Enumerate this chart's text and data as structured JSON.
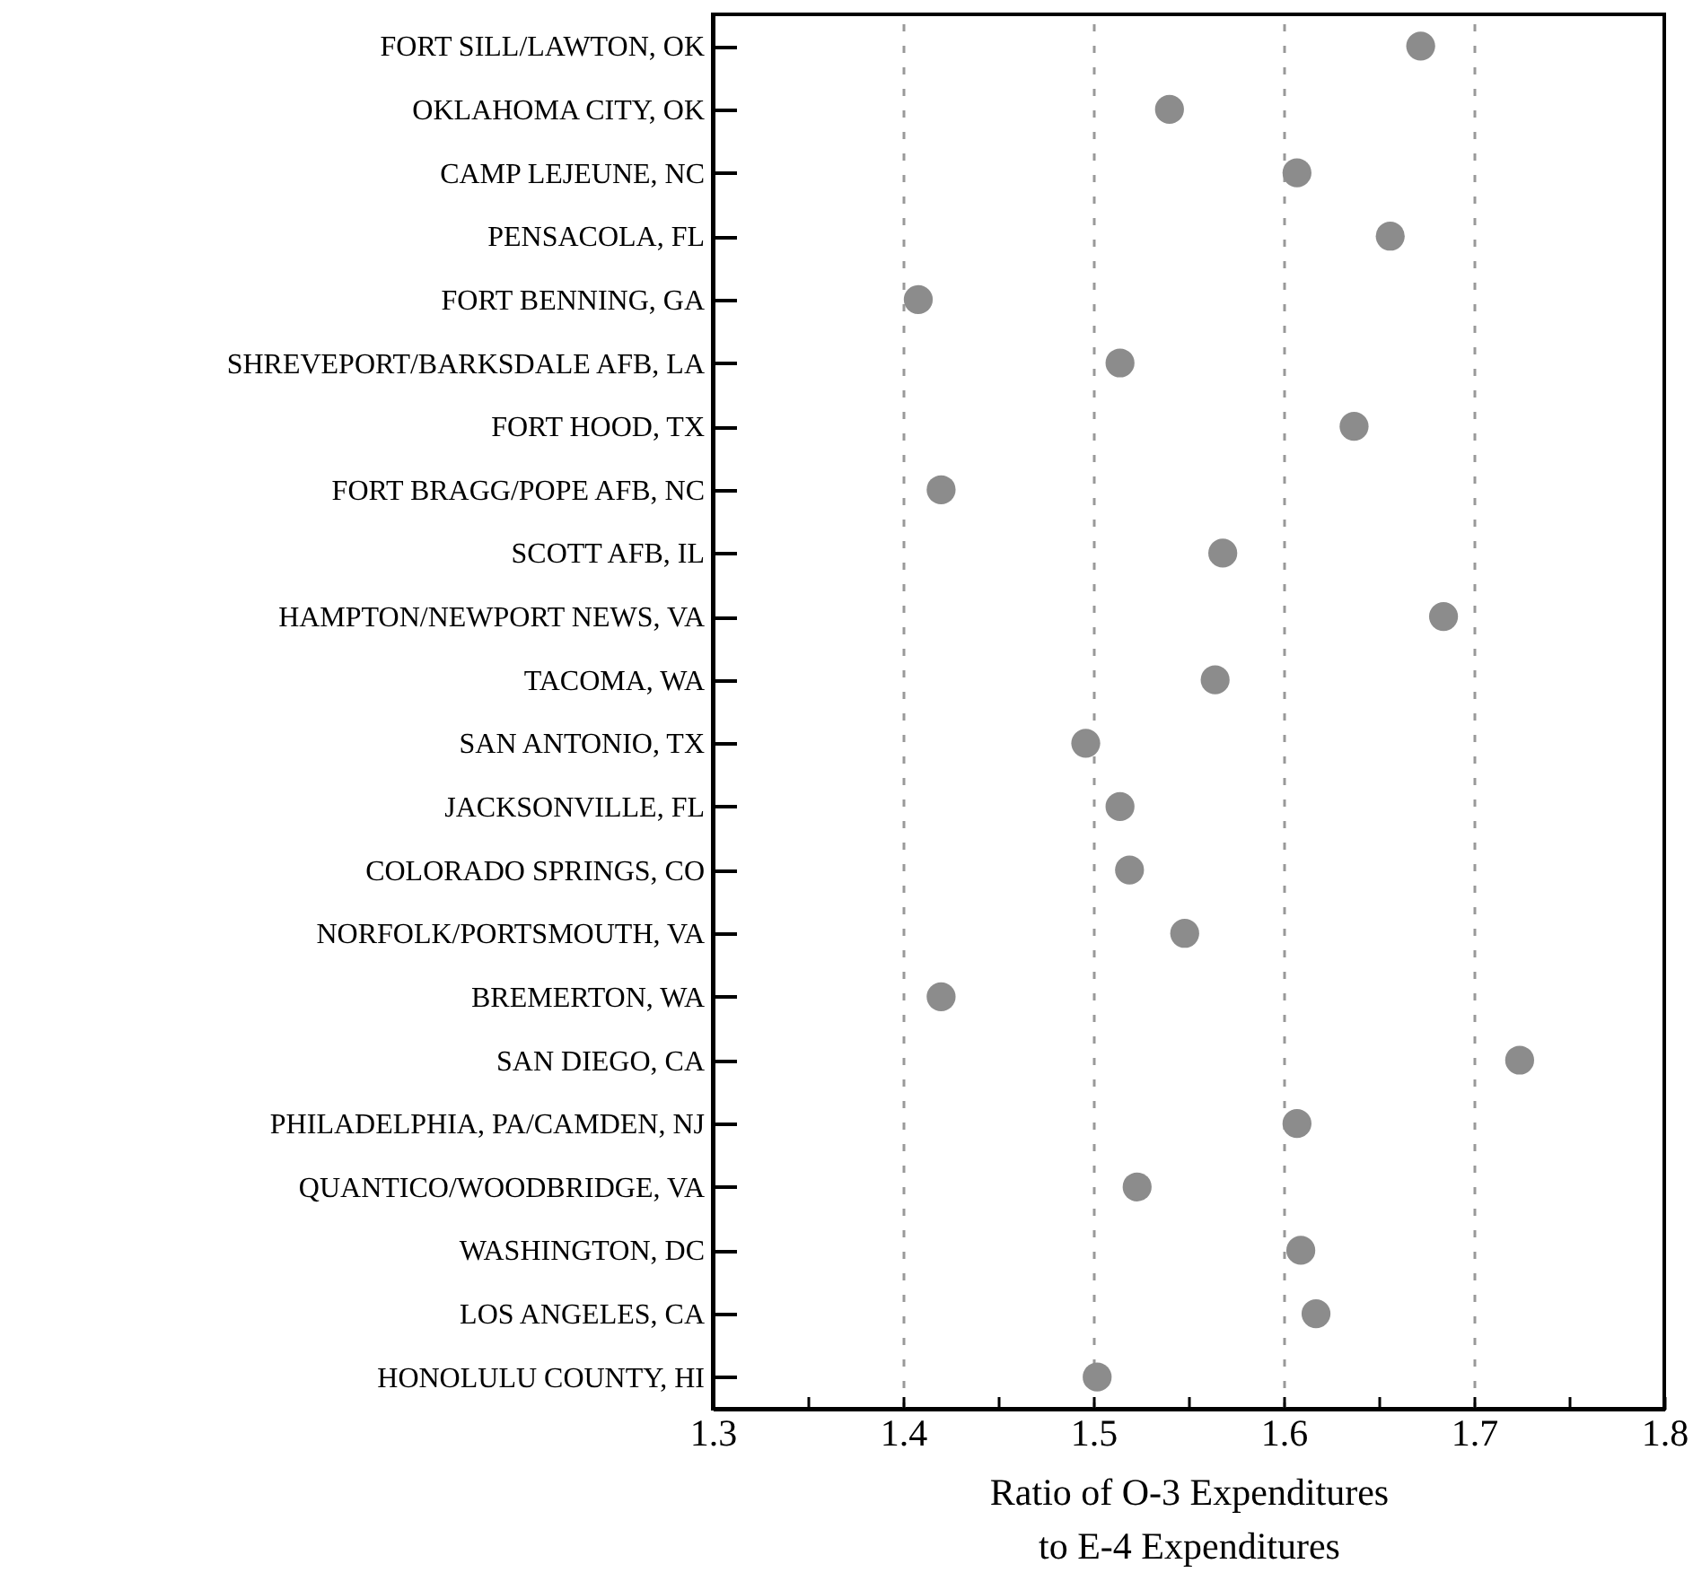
{
  "chart_data": {
    "type": "scatter",
    "xlabel": "Ratio of O-3 Expenditures\nto E-4 Expenditures",
    "orientation": "horizontal",
    "categories": [
      "FORT SILL/LAWTON, OK",
      "OKLAHOMA CITY, OK",
      "CAMP LEJEUNE, NC",
      "PENSACOLA, FL",
      "FORT BENNING, GA",
      "SHREVEPORT/BARKSDALE AFB, LA",
      "FORT HOOD, TX",
      "FORT BRAGG/POPE AFB, NC",
      "SCOTT AFB, IL",
      "HAMPTON/NEWPORT NEWS, VA",
      "TACOMA, WA",
      "SAN ANTONIO, TX",
      "JACKSONVILLE, FL",
      "COLORADO SPRINGS, CO",
      "NORFOLK/PORTSMOUTH, VA",
      "BREMERTON, WA",
      "SAN DIEGO, CA",
      "PHILADELPHIA, PA/CAMDEN, NJ",
      "QUANTICO/WOODBRIDGE, VA",
      "WASHINGTON, DC",
      "LOS ANGELES, CA",
      "HONOLULU COUNTY, HI"
    ],
    "series": [
      {
        "color": "#8c8c8c",
        "values": [
          1.672,
          1.54,
          1.607,
          1.656,
          1.408,
          1.514,
          1.637,
          1.42,
          1.568,
          1.684,
          1.564,
          1.496,
          1.514,
          1.519,
          1.548,
          1.42,
          1.724,
          1.607,
          1.523,
          1.609,
          1.617,
          1.502
        ]
      }
    ],
    "xlim": [
      1.3,
      1.8
    ],
    "xticks": [
      1.3,
      {
        "value": 1.35,
        "label": null
      },
      1.4,
      {
        "value": 1.45,
        "label": null
      },
      1.5,
      {
        "value": 1.55,
        "label": null
      },
      1.6,
      {
        "value": 1.65,
        "label": null
      },
      1.7,
      {
        "value": 1.75,
        "label": null
      },
      1.8
    ],
    "grid": "x",
    "marker": "circle"
  }
}
